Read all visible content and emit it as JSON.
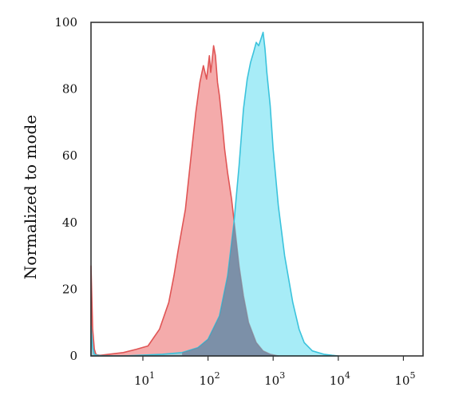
{
  "chart_data": {
    "type": "area",
    "title": "",
    "xlabel": "",
    "ylabel": "Normalized to mode",
    "x_scale": "log",
    "xlim": [
      1.6,
      200000
    ],
    "ylim": [
      0,
      100
    ],
    "y_ticks": [
      "0",
      "20",
      "40",
      "60",
      "80",
      "100"
    ],
    "x_ticks": [
      {
        "base": "10",
        "exp": "1",
        "value": 10
      },
      {
        "base": "10",
        "exp": "2",
        "value": 100
      },
      {
        "base": "10",
        "exp": "3",
        "value": 1000
      },
      {
        "base": "10",
        "exp": "4",
        "value": 10000
      },
      {
        "base": "10",
        "exp": "5",
        "value": 100000
      }
    ],
    "grid": false,
    "legend": "none",
    "series": [
      {
        "color": "#f08a8a",
        "stroke": "#e05555",
        "x": [
          1.6,
          1.7,
          1.8,
          1.9,
          2.0,
          2.2,
          3.0,
          5,
          8,
          12,
          18,
          25,
          30,
          35,
          45,
          55,
          65,
          75,
          85,
          95,
          105,
          110,
          115,
          122,
          130,
          140,
          150,
          165,
          180,
          200,
          230,
          260,
          300,
          350,
          420,
          550,
          700,
          900,
          1200
        ],
        "y": [
          27,
          8,
          2,
          0.5,
          0.3,
          0.2,
          0.5,
          1,
          2,
          3,
          8,
          16,
          24,
          32,
          44,
          60,
          73,
          82,
          87,
          83,
          90,
          85,
          88,
          93,
          90,
          82,
          78,
          70,
          62,
          55,
          47,
          38,
          27,
          18,
          10,
          4,
          1.5,
          0.5,
          0
        ]
      },
      {
        "color": "#5fdcf0",
        "stroke": "#3bc3dc",
        "x": [
          1.6,
          1.7,
          1.8,
          1.9,
          2.0,
          2.2,
          5,
          20,
          40,
          70,
          100,
          150,
          200,
          250,
          300,
          350,
          400,
          450,
          500,
          550,
          600,
          650,
          700,
          750,
          800,
          900,
          1000,
          1200,
          1500,
          2000,
          2500,
          3000,
          4000,
          6000,
          8000,
          10000
        ],
        "y": [
          9,
          2.5,
          0.5,
          0.3,
          0.2,
          0.1,
          0,
          0.5,
          1,
          2.5,
          5,
          12,
          24,
          40,
          57,
          74,
          83,
          88,
          91,
          94,
          93,
          95,
          97,
          92,
          85,
          75,
          62,
          45,
          30,
          16,
          8,
          4,
          1.5,
          0.5,
          0.2,
          0
        ]
      }
    ]
  }
}
